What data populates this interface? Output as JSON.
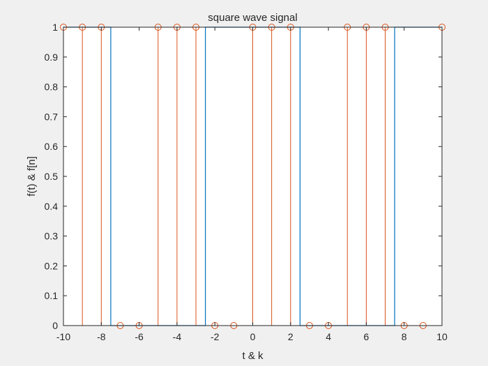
{
  "chart_data": {
    "type": "line",
    "title": "square wave signal",
    "xlabel": "t & k",
    "ylabel": "f(t) & f[n]",
    "xlim": [
      -10,
      10
    ],
    "ylim": [
      0,
      1
    ],
    "xticks": [
      -10,
      -8,
      -6,
      -4,
      -2,
      0,
      2,
      4,
      6,
      8,
      10
    ],
    "yticks": [
      0,
      0.1,
      0.2,
      0.3,
      0.4,
      0.5,
      0.6,
      0.7,
      0.8,
      0.9,
      1
    ],
    "grid": false,
    "series": [
      {
        "kind": "stairs",
        "color": "#0072bd",
        "x": [
          -10,
          -7.5,
          -7.5,
          -2.5,
          -2.5,
          2.5,
          2.5,
          7.5,
          7.5,
          10
        ],
        "y": [
          1,
          1,
          0,
          0,
          1,
          1,
          0,
          0,
          1,
          1
        ],
        "extra_drops": [
          -7.5,
          -2.5,
          2.5,
          7.5
        ],
        "rises": [
          -5,
          0,
          5
        ]
      },
      {
        "kind": "stem",
        "color": "#d95319",
        "k": [
          -10,
          -9,
          -8,
          -7,
          -6,
          -5,
          -4,
          -3,
          -2,
          -1,
          0,
          1,
          2,
          3,
          4,
          5,
          6,
          7,
          8,
          9,
          10
        ],
        "values": [
          1,
          1,
          1,
          0,
          0,
          1,
          1,
          1,
          0,
          0,
          1,
          1,
          1,
          0,
          0,
          1,
          1,
          1,
          0,
          0,
          1
        ]
      }
    ]
  }
}
